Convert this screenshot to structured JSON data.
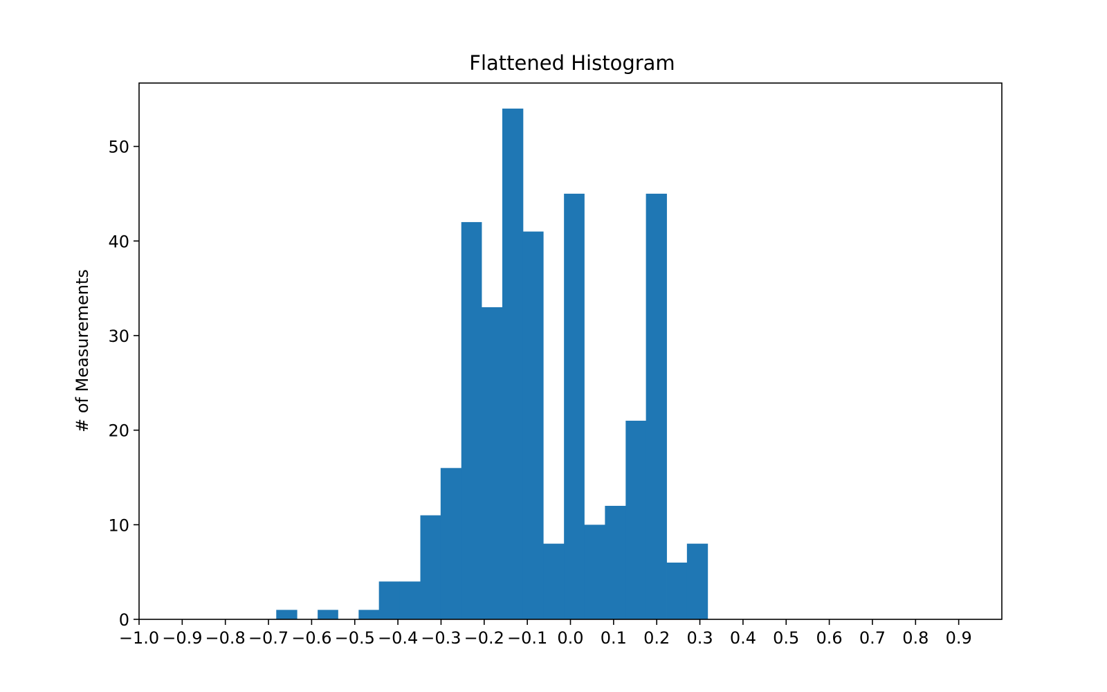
{
  "chart_data": {
    "type": "bar",
    "title": "Flattened Histogram",
    "xlabel": "",
    "ylabel": "# of Measurements",
    "bar_color": "#1f77b4",
    "xlim": [
      -1.0,
      1.0
    ],
    "ylim": [
      0,
      56.7
    ],
    "grid": false,
    "legend": "none",
    "bin_width": 0.0476,
    "bins": [
      {
        "x0": -0.682,
        "x1": -0.634,
        "count": 1
      },
      {
        "x0": -0.586,
        "x1": -0.539,
        "count": 1
      },
      {
        "x0": -0.491,
        "x1": -0.444,
        "count": 1
      },
      {
        "x0": -0.444,
        "x1": -0.396,
        "count": 4
      },
      {
        "x0": -0.396,
        "x1": -0.348,
        "count": 4
      },
      {
        "x0": -0.348,
        "x1": -0.301,
        "count": 11
      },
      {
        "x0": -0.301,
        "x1": -0.253,
        "count": 16
      },
      {
        "x0": -0.253,
        "x1": -0.206,
        "count": 42
      },
      {
        "x0": -0.206,
        "x1": -0.158,
        "count": 33
      },
      {
        "x0": -0.158,
        "x1": -0.11,
        "count": 54
      },
      {
        "x0": -0.11,
        "x1": -0.063,
        "count": 41
      },
      {
        "x0": -0.063,
        "x1": -0.015,
        "count": 8
      },
      {
        "x0": -0.015,
        "x1": 0.032,
        "count": 45
      },
      {
        "x0": 0.032,
        "x1": 0.08,
        "count": 10
      },
      {
        "x0": 0.08,
        "x1": 0.128,
        "count": 12
      },
      {
        "x0": 0.128,
        "x1": 0.175,
        "count": 21
      },
      {
        "x0": 0.175,
        "x1": 0.223,
        "count": 45
      },
      {
        "x0": 0.223,
        "x1": 0.27,
        "count": 6
      },
      {
        "x0": 0.27,
        "x1": 0.318,
        "count": 8
      }
    ],
    "xticks": [
      {
        "value": -1.0,
        "label": "−1.0"
      },
      {
        "value": -0.9,
        "label": "−0.9"
      },
      {
        "value": -0.8,
        "label": "−0.8"
      },
      {
        "value": -0.7,
        "label": "−0.7"
      },
      {
        "value": -0.6,
        "label": "−0.6"
      },
      {
        "value": -0.5,
        "label": "−0.5"
      },
      {
        "value": -0.4,
        "label": "−0.4"
      },
      {
        "value": -0.3,
        "label": "−0.3"
      },
      {
        "value": -0.2,
        "label": "−0.2"
      },
      {
        "value": -0.1,
        "label": "−0.1"
      },
      {
        "value": 0.0,
        "label": "0.0"
      },
      {
        "value": 0.1,
        "label": "0.1"
      },
      {
        "value": 0.2,
        "label": "0.2"
      },
      {
        "value": 0.3,
        "label": "0.3"
      },
      {
        "value": 0.4,
        "label": "0.4"
      },
      {
        "value": 0.5,
        "label": "0.5"
      },
      {
        "value": 0.6,
        "label": "0.6"
      },
      {
        "value": 0.7,
        "label": "0.7"
      },
      {
        "value": 0.8,
        "label": "0.8"
      },
      {
        "value": 0.9,
        "label": "0.9"
      }
    ],
    "yticks": [
      {
        "value": 0,
        "label": "0"
      },
      {
        "value": 10,
        "label": "10"
      },
      {
        "value": 20,
        "label": "20"
      },
      {
        "value": 30,
        "label": "30"
      },
      {
        "value": 40,
        "label": "40"
      },
      {
        "value": 50,
        "label": "50"
      }
    ]
  }
}
